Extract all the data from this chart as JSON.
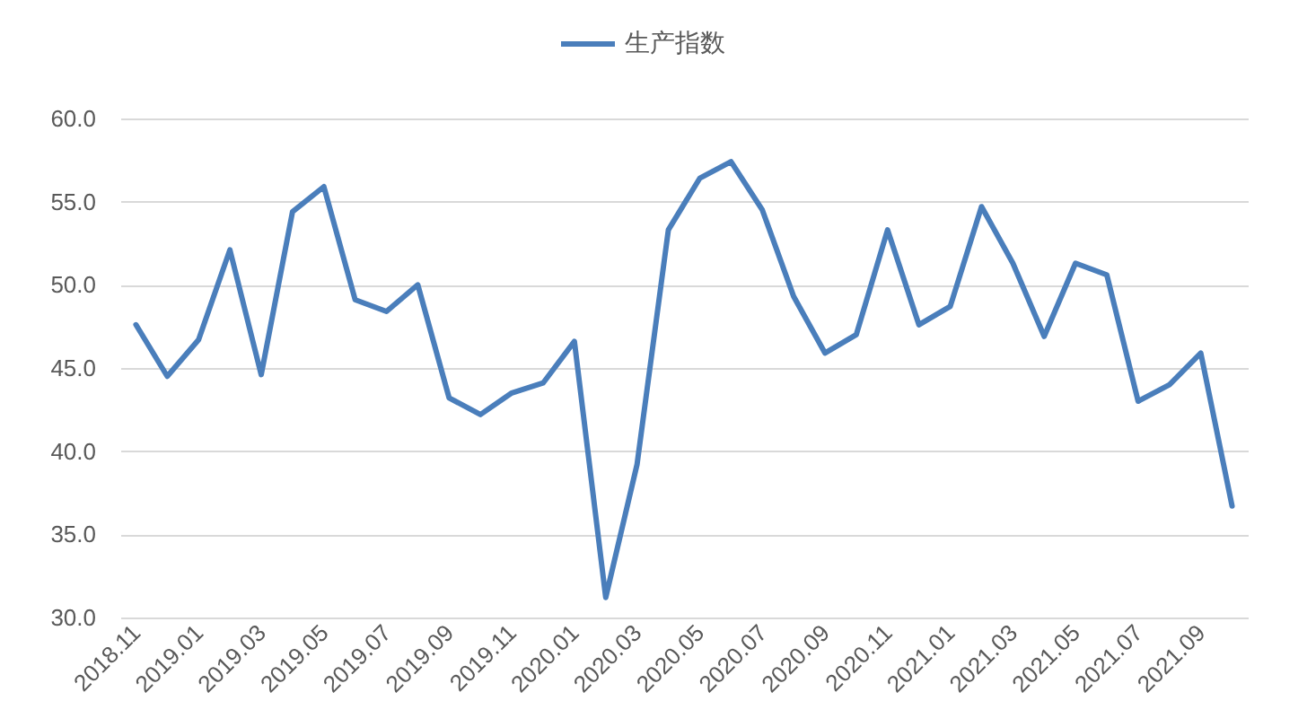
{
  "chart_data": {
    "type": "line",
    "categories": [
      "2018.11",
      null,
      "2019.01",
      null,
      "2019.03",
      null,
      "2019.05",
      null,
      "2019.07",
      null,
      "2019.09",
      null,
      "2019.11",
      null,
      "2020.01",
      null,
      "2020.03",
      null,
      "2020.05",
      null,
      "2020.07",
      null,
      "2020.09",
      null,
      "2020.11",
      null,
      "2021.01",
      null,
      "2021.03",
      null,
      "2021.05",
      null,
      "2021.07",
      null,
      "2021.09",
      null
    ],
    "series": [
      {
        "name": "生产指数",
        "color": "#4a7ebb",
        "values": [
          47.6,
          44.5,
          46.7,
          52.1,
          44.6,
          54.4,
          55.9,
          49.1,
          48.4,
          50.0,
          43.2,
          42.2,
          43.5,
          44.1,
          46.6,
          31.2,
          39.2,
          53.3,
          56.4,
          57.4,
          54.5,
          49.3,
          45.9,
          47.0,
          53.3,
          47.6,
          48.7,
          54.7,
          51.3,
          46.9,
          51.3,
          50.6,
          43.0,
          44.0,
          45.9,
          36.7
        ]
      }
    ],
    "ylim": [
      30,
      60
    ],
    "yticks": [
      {
        "value": 30,
        "label": "30.0"
      },
      {
        "value": 35,
        "label": "35.0"
      },
      {
        "value": 40,
        "label": "40.0"
      },
      {
        "value": 45,
        "label": "45.0"
      },
      {
        "value": 50,
        "label": "50.0"
      },
      {
        "value": 55,
        "label": "55.0"
      },
      {
        "value": 60,
        "label": "60.0"
      }
    ],
    "grid": "y",
    "legend": "top"
  }
}
